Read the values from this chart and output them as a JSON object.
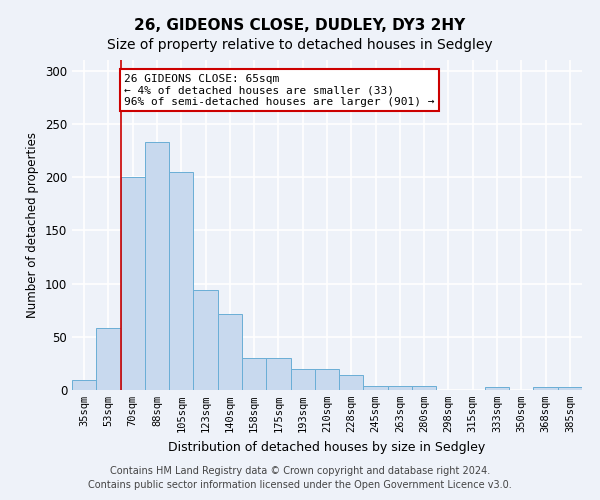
{
  "title": "26, GIDEONS CLOSE, DUDLEY, DY3 2HY",
  "subtitle": "Size of property relative to detached houses in Sedgley",
  "xlabel": "Distribution of detached houses by size in Sedgley",
  "ylabel": "Number of detached properties",
  "categories": [
    "35sqm",
    "53sqm",
    "70sqm",
    "88sqm",
    "105sqm",
    "123sqm",
    "140sqm",
    "158sqm",
    "175sqm",
    "193sqm",
    "210sqm",
    "228sqm",
    "245sqm",
    "263sqm",
    "280sqm",
    "298sqm",
    "315sqm",
    "333sqm",
    "350sqm",
    "368sqm",
    "385sqm"
  ],
  "values": [
    9,
    58,
    200,
    233,
    205,
    94,
    71,
    30,
    30,
    20,
    20,
    14,
    4,
    4,
    4,
    0,
    0,
    3,
    0,
    3,
    3
  ],
  "bar_color": "#c8d9ee",
  "bar_edge_color": "#6aaed6",
  "annotation_line1": "26 GIDEONS CLOSE: 65sqm",
  "annotation_line2": "← 4% of detached houses are smaller (33)",
  "annotation_line3": "96% of semi-detached houses are larger (901) →",
  "annotation_box_color": "#ffffff",
  "annotation_box_edge_color": "#cc0000",
  "vline_color": "#cc0000",
  "vline_x_index": 1.5,
  "ylim": [
    0,
    310
  ],
  "yticks": [
    0,
    50,
    100,
    150,
    200,
    250,
    300
  ],
  "footer_line1": "Contains HM Land Registry data © Crown copyright and database right 2024.",
  "footer_line2": "Contains public sector information licensed under the Open Government Licence v3.0.",
  "fig_bg_color": "#eef2f9",
  "ax_bg_color": "#eef2f9",
  "grid_color": "#ffffff",
  "title_fontsize": 11,
  "subtitle_fontsize": 10,
  "axis_label_fontsize": 8.5,
  "tick_fontsize": 7.5,
  "annotation_fontsize": 8,
  "footer_fontsize": 7
}
